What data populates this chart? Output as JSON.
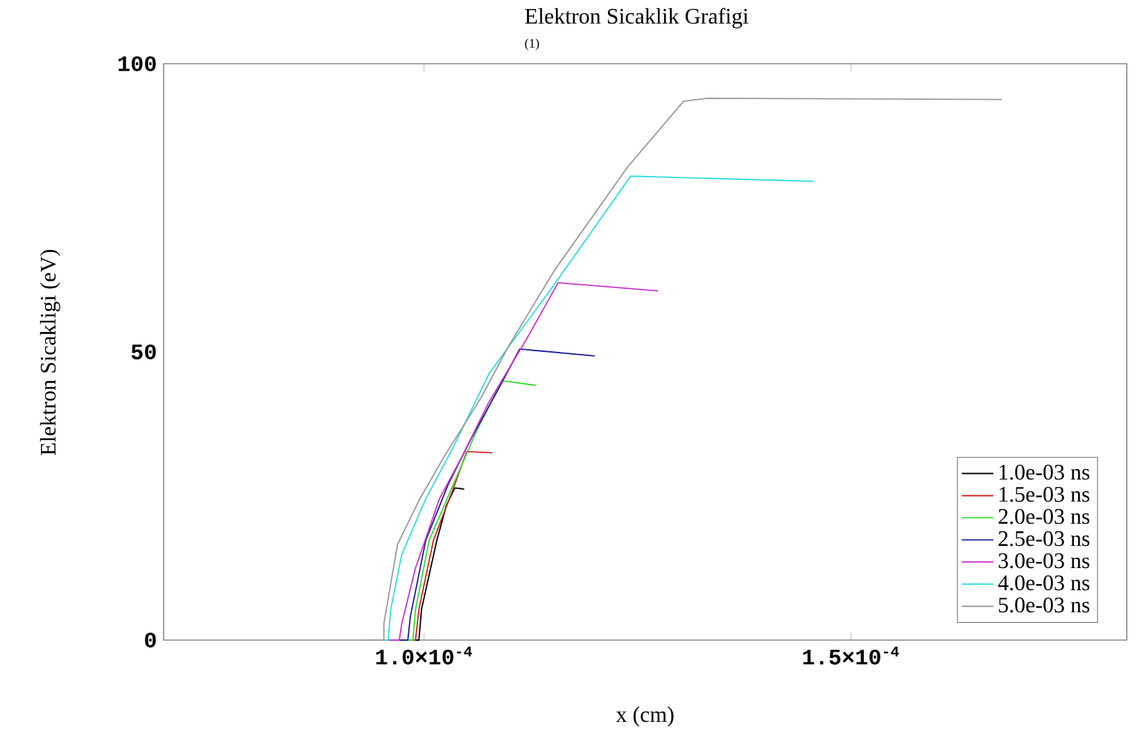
{
  "chart_data": {
    "type": "line",
    "title": "Elektron Sicaklik Grafigi",
    "subtitle": "(1)",
    "xlabel": "x (cm)",
    "ylabel": "Elektron Sicakligi (eV)",
    "xlim": [
      6.95e-05,
      0.0001823
    ],
    "ylim": [
      0,
      100
    ],
    "xticks": [
      {
        "value": 0.0001,
        "label": "1.0×10$^{-4}$"
      },
      {
        "value": 0.00015,
        "label": "1.5×10$^{-4}$"
      }
    ],
    "yticks": [
      0,
      50,
      100
    ],
    "grid": false,
    "legend": "bottom right",
    "marker": "none",
    "line_style": "solid",
    "series": [
      {
        "name": "1.0e-03 ns",
        "color": "#000000",
        "x": [
          9.82e-05,
          9.94e-05,
          9.97e-05,
          0.0001015,
          0.0001026,
          0.0001036,
          0.0001047
        ],
        "values": [
          0,
          0,
          5.3,
          17.3,
          23.3,
          26.4,
          26.2
        ]
      },
      {
        "name": "1.5e-03 ns",
        "color": "#cc2222",
        "x": [
          9.77e-05,
          9.9e-05,
          9.94e-05,
          0.0001011,
          0.0001034,
          0.000105,
          0.000108
        ],
        "values": [
          0,
          0,
          5.3,
          17.3,
          26.2,
          32.7,
          32.5
        ]
      },
      {
        "name": "2.0e-03 ns",
        "color": "#33dd33",
        "x": [
          9.74e-05,
          9.87e-05,
          9.9e-05,
          0.0001006,
          0.0001034,
          0.000106,
          0.0001091,
          0.0001131
        ],
        "values": [
          0,
          0,
          5.3,
          17.3,
          26.9,
          35.8,
          45.0,
          44.2
        ]
      },
      {
        "name": "2.5e-03 ns",
        "color": "#1a1a99",
        "x": [
          9.66e-05,
          9.81e-05,
          9.84e-05,
          0.0001002,
          0.0001028,
          0.0001055,
          0.0001088,
          0.0001112,
          0.00012
        ],
        "values": [
          0,
          0,
          4.1,
          17.3,
          26.9,
          34.9,
          43.8,
          50.5,
          49.3
        ]
      },
      {
        "name": "3.0e-03 ns",
        "color": "#cc33cc",
        "x": [
          9.58e-05,
          9.71e-05,
          9.74e-05,
          9.9e-05,
          0.0001018,
          0.0001044,
          0.0001076,
          0.000112,
          0.0001157,
          0.0001274
        ],
        "values": [
          0,
          0,
          2.9,
          12.5,
          24.5,
          31.7,
          41.3,
          52.2,
          62.0,
          60.6
        ]
      },
      {
        "name": "4.0e-03 ns",
        "color": "#33dddd",
        "x": [
          9.3e-05,
          9.58e-05,
          9.61e-05,
          9.74e-05,
          0.0001002,
          0.0001034,
          0.0001076,
          0.0001153,
          0.0001242,
          0.0001456
        ],
        "values": [
          0,
          0,
          5.3,
          14.9,
          24.5,
          33.4,
          46.2,
          61.8,
          80.5,
          79.6
        ]
      },
      {
        "name": "5.0e-03 ns",
        "color": "#999999",
        "x": [
          9.29e-05,
          9.53e-05,
          9.53e-05,
          9.69e-05,
          9.95e-05,
          0.0001023,
          0.0001067,
          0.0001099,
          0.0001153,
          0.0001239,
          0.0001304,
          0.0001331,
          0.0001677
        ],
        "values": [
          0,
          0,
          2.9,
          16.6,
          24.5,
          31.7,
          42.1,
          51.0,
          64.2,
          82.2,
          93.5,
          94.0,
          93.8
        ]
      }
    ]
  }
}
